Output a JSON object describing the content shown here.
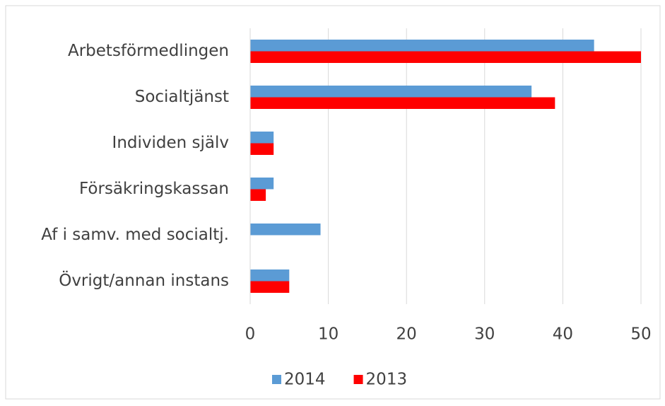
{
  "chart_data": {
    "type": "hbar",
    "categories": [
      "Arbetsförmedlingen",
      "Socialtjänst",
      "Individen själv",
      "Försäkringskassan",
      "Af i samv. med socialtj.",
      "Övrigt/annan instans"
    ],
    "series": [
      {
        "name": "2014",
        "color": "#5b9bd5",
        "values": [
          44,
          36,
          3,
          3,
          9,
          5
        ]
      },
      {
        "name": "2013",
        "color": "#ff0000",
        "values": [
          50,
          39,
          3,
          2,
          null,
          5
        ]
      }
    ],
    "xlim": [
      0,
      50
    ],
    "xticks": [
      0,
      10,
      20,
      30,
      40,
      50
    ],
    "grid": true,
    "legend": "bottom"
  }
}
